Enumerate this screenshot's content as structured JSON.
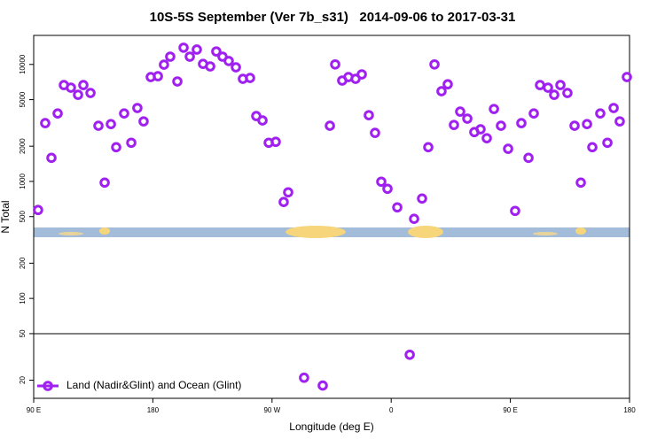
{
  "chart_data": {
    "type": "scatter",
    "title": "10S-5S September (Ver 7b_s31)   2014-09-06 to 2017-03-31",
    "x_label": "Longitude (deg E)",
    "y_label": "N Total",
    "log_y": true,
    "xlim": [
      90,
      540
    ],
    "xticks": [
      {
        "value": 90,
        "label": "90 E"
      },
      180,
      {
        "value": 270,
        "label": "90 W"
      },
      {
        "value": 360,
        "label": "0"
      },
      {
        "value": 450,
        "label": "90 E"
      },
      {
        "value": 540,
        "label": "180"
      }
    ],
    "ylim": [
      14,
      17700
    ],
    "yticks": [
      20,
      50,
      100,
      200,
      500,
      1000,
      2000,
      5000,
      10000
    ],
    "legend": "bottom-left",
    "series": [
      {
        "name": "Land (Nadir&Glint) and Ocean (Glint)",
        "color": "#a020f0",
        "x": [
          93.3,
          98.7,
          103.4,
          108.1,
          112.8,
          118.1,
          123.5,
          127.5,
          132.9,
          138.9,
          143.6,
          148.3,
          152.3,
          158.3,
          163.7,
          168.3,
          173.0,
          178.4,
          183.8,
          188.4,
          193.1,
          198.5,
          203.2,
          207.9,
          213.2,
          217.9,
          223.3,
          227.9,
          232.6,
          237.3,
          242.7,
          248.0,
          253.4,
          258.1,
          262.8,
          267.5,
          272.8,
          278.8,
          282.2,
          294.2,
          308.3,
          313.7,
          317.7,
          323.0,
          327.7,
          333.1,
          337.8,
          343.1,
          347.8,
          352.5,
          357.2,
          364.6,
          374.0,
          377.3,
          383.3,
          388.0,
          392.7,
          398.0,
          402.7,
          407.4,
          412.1,
          417.5,
          422.8,
          427.5,
          432.2,
          437.6,
          442.9,
          448.3,
          453.6,
          458.3,
          463.7,
          467.7,
          472.4,
          478.4,
          483.1,
          487.8,
          493.1,
          498.5,
          503.2,
          507.9,
          511.9,
          517.9,
          523.3,
          528.0,
          532.6,
          538.0
        ],
        "values": [
          570,
          3150,
          1590,
          3810,
          6660,
          6330,
          5500,
          6660,
          5700,
          2990,
          977,
          3090,
          1960,
          3810,
          2140,
          4240,
          3260,
          7800,
          7930,
          9950,
          11650,
          7150,
          13900,
          11650,
          13400,
          10100,
          9620,
          12900,
          11650,
          10700,
          9450,
          7530,
          7660,
          3620,
          3320,
          2140,
          2180,
          667,
          807,
          21,
          18,
          2990,
          10000,
          7280,
          7800,
          7530,
          8220,
          3680,
          2600,
          995,
          865,
          600,
          33,
          479,
          714,
          1960,
          10000,
          5900,
          6770,
          3040,
          3950,
          3440,
          2640,
          2790,
          2340,
          4160,
          2990,
          1900,
          560,
          3150,
          1590,
          3810,
          6660,
          6330,
          5500,
          6660,
          5700,
          2990,
          977,
          3090,
          1960,
          3810,
          2140,
          4240,
          3260,
          7800
        ]
      }
    ]
  }
}
